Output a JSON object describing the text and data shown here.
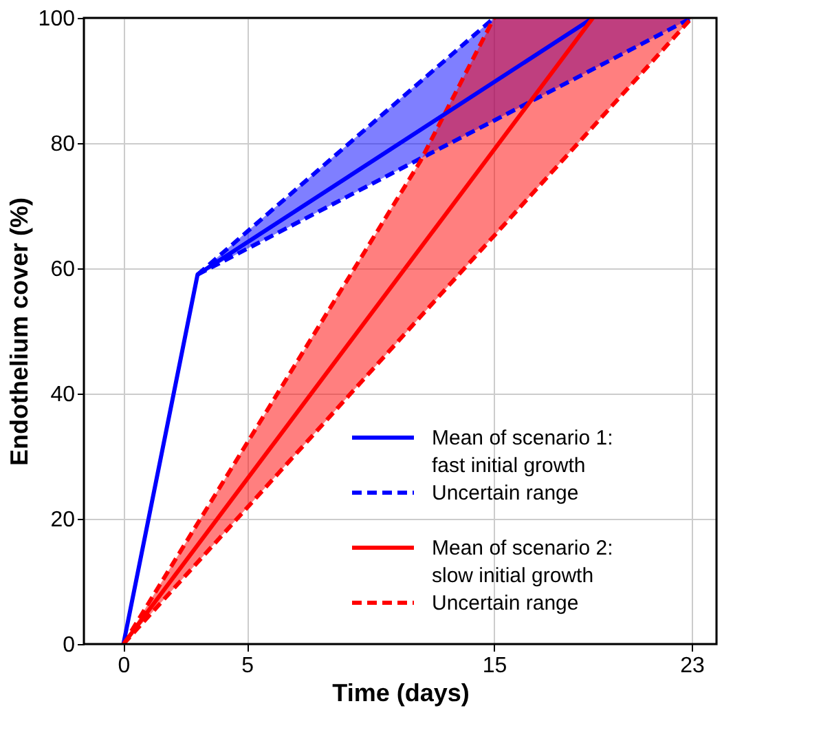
{
  "chart_data": {
    "type": "line",
    "xlabel": "Time (days)",
    "ylabel": "Endothelium cover (%)",
    "xlim": [
      -1.6,
      24
    ],
    "xticks": [
      0,
      5,
      15,
      23
    ],
    "ylim": [
      0,
      100
    ],
    "yticks": [
      0,
      20,
      40,
      60,
      80,
      100
    ],
    "grid": true,
    "legend": "bottom right",
    "series": [
      {
        "name": "Uncertain range",
        "color": "#0000ff",
        "line_style": "dashed",
        "x": [
          3,
          12,
          15,
          23
        ],
        "values": [
          59,
          77.5,
          83.6,
          100
        ],
        "lower": [
          59,
          77.5,
          83.6,
          100
        ],
        "upper": [
          59,
          89.8,
          100,
          100
        ]
      },
      {
        "color": "#0000ff",
        "line_style": "dashed",
        "x": [
          3,
          15
        ],
        "values": [
          59,
          100
        ]
      },
      {
        "name": "Uncertain range",
        "color": "#ff0000",
        "line_style": "dashed",
        "x": [
          0,
          12,
          15,
          23
        ],
        "values": [
          0,
          52.2,
          65.2,
          100
        ],
        "lower": [
          0,
          52.2,
          65.2,
          100
        ],
        "upper": [
          0,
          77,
          100,
          100
        ]
      },
      {
        "color": "#ff0000",
        "line_style": "dashed",
        "x": [
          0,
          12,
          15
        ],
        "values": [
          0,
          77,
          100
        ]
      },
      {
        "name": "Mean of scenario 1:\nfast initial growth",
        "color": "#0000ff",
        "line_style": "solid",
        "x": [
          0,
          3,
          19
        ],
        "values": [
          0,
          59,
          100
        ]
      },
      {
        "name": "Mean of scenario 2:\nslow initial growth",
        "color": "#ff0000",
        "line_style": "solid",
        "x": [
          0,
          19
        ],
        "values": [
          0,
          100
        ]
      }
    ]
  }
}
